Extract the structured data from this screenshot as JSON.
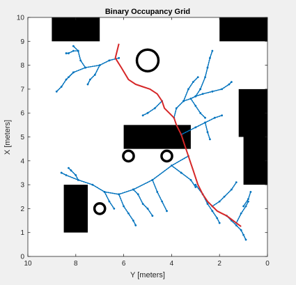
{
  "chart_data": {
    "type": "scatter",
    "title": "Binary Occupancy Grid",
    "xlabel": "Y [meters]",
    "ylabel": "X [meters]",
    "xlim": [
      10,
      0
    ],
    "ylim": [
      0,
      10
    ],
    "x_reversed": true,
    "x_ticks": [
      10,
      8,
      6,
      4,
      2,
      0
    ],
    "y_ticks": [
      0,
      1,
      2,
      3,
      4,
      5,
      6,
      7,
      8,
      9,
      10
    ],
    "grid": false,
    "background_color": "#ffffff",
    "obstacle_color": "#000000",
    "tree_color": "#0072bd",
    "path_color": "#d62728",
    "obstacles": {
      "rectangles": [
        {
          "y": [
            9.0,
            7.0
          ],
          "x": [
            9.0,
            10.0
          ]
        },
        {
          "y": [
            2.0,
            0.0
          ],
          "x": [
            9.0,
            10.0
          ]
        },
        {
          "y": [
            1.2,
            0.0
          ],
          "x": [
            5.0,
            7.0
          ]
        },
        {
          "y": [
            1.0,
            0.0
          ],
          "x": [
            3.0,
            5.2
          ]
        },
        {
          "y": [
            6.0,
            3.2
          ],
          "x": [
            4.5,
            5.5
          ]
        },
        {
          "y": [
            8.5,
            7.5
          ],
          "x": [
            1.0,
            3.0
          ]
        }
      ],
      "rings": [
        {
          "y": 5.0,
          "x": 8.2,
          "r": 0.45
        },
        {
          "y": 5.8,
          "x": 4.2,
          "r": 0.22
        },
        {
          "y": 4.2,
          "x": 4.2,
          "r": 0.22
        },
        {
          "y": 7.0,
          "x": 2.0,
          "r": 0.22
        }
      ]
    },
    "path": {
      "y": [
        6.2,
        6.35,
        6.1,
        5.8,
        5.5,
        5.2,
        4.9,
        4.6,
        4.4,
        4.3,
        4.1,
        3.9,
        3.8,
        3.7,
        3.6,
        3.5,
        3.4,
        3.3,
        3.2,
        3.1,
        3.0,
        2.9,
        2.7,
        2.5,
        2.3,
        2.1,
        1.9,
        1.7,
        1.5,
        1.3,
        1.1
      ],
      "x": [
        8.9,
        8.3,
        7.9,
        7.4,
        7.2,
        7.1,
        7.0,
        6.8,
        6.5,
        6.2,
        6.0,
        5.8,
        5.5,
        5.3,
        5.1,
        4.8,
        4.5,
        4.2,
        3.9,
        3.6,
        3.3,
        3.0,
        2.6,
        2.3,
        2.1,
        1.9,
        1.8,
        1.7,
        1.55,
        1.4,
        1.25
      ]
    },
    "tree_branches": [
      {
        "y": [
          6.2,
          6.6,
          7.0,
          7.6,
          8.1,
          8.3
        ],
        "x": [
          8.3,
          8.2,
          8.0,
          7.9,
          7.7,
          7.5
        ]
      },
      {
        "y": [
          7.6,
          7.8,
          7.9,
          8.1
        ],
        "x": [
          7.9,
          8.2,
          8.6,
          8.8
        ]
      },
      {
        "y": [
          8.1,
          8.4,
          8.6,
          8.8
        ],
        "x": [
          7.7,
          7.4,
          7.1,
          6.9
        ]
      },
      {
        "y": [
          7.0,
          7.2,
          7.4,
          7.5
        ],
        "x": [
          8.0,
          7.6,
          7.4,
          7.2
        ]
      },
      {
        "y": [
          7.9,
          8.1,
          8.3,
          8.4
        ],
        "x": [
          8.6,
          8.6,
          8.5,
          8.5
        ]
      },
      {
        "y": [
          3.9,
          3.8,
          3.5,
          3.2,
          3.0,
          2.8
        ],
        "x": [
          5.8,
          6.2,
          6.5,
          6.6,
          6.7,
          7.0
        ]
      },
      {
        "y": [
          3.0,
          2.7,
          2.3,
          1.9,
          1.6,
          1.5
        ],
        "x": [
          6.7,
          6.8,
          6.9,
          7.0,
          7.2,
          7.3
        ]
      },
      {
        "y": [
          2.8,
          2.6,
          2.5,
          2.4,
          2.3
        ],
        "x": [
          7.0,
          7.5,
          7.9,
          8.3,
          8.6
        ]
      },
      {
        "y": [
          3.5,
          3.3,
          3.1,
          2.9
        ],
        "x": [
          6.5,
          7.0,
          7.3,
          7.5
        ]
      },
      {
        "y": [
          3.2,
          3.0,
          2.8,
          2.6
        ],
        "x": [
          6.6,
          6.3,
          6.0,
          5.8
        ]
      },
      {
        "y": [
          4.4,
          4.7,
          5.0,
          5.2
        ],
        "x": [
          6.5,
          6.2,
          6.0,
          5.9
        ]
      },
      {
        "y": [
          3.6,
          3.0,
          2.6,
          2.2,
          1.9
        ],
        "x": [
          5.1,
          5.4,
          5.6,
          5.8,
          5.9
        ]
      },
      {
        "y": [
          2.6,
          2.5,
          2.4
        ],
        "x": [
          5.6,
          5.2,
          4.9
        ]
      },
      {
        "y": [
          3.3,
          4.0,
          4.8,
          5.6,
          6.2,
          6.8,
          7.3,
          7.9,
          8.4,
          8.6
        ],
        "x": [
          4.2,
          3.8,
          3.2,
          2.8,
          2.6,
          2.7,
          3.0,
          3.2,
          3.4,
          3.5
        ]
      },
      {
        "y": [
          6.2,
          6.0,
          5.8,
          5.6,
          5.5
        ],
        "x": [
          2.6,
          2.1,
          1.8,
          1.5,
          1.3
        ]
      },
      {
        "y": [
          4.8,
          4.6,
          4.4,
          4.2
        ],
        "x": [
          3.2,
          2.7,
          2.3,
          1.9
        ]
      },
      {
        "y": [
          5.6,
          5.4,
          5.2,
          5.0,
          4.8
        ],
        "x": [
          2.8,
          2.6,
          2.2,
          2.0,
          1.7
        ]
      },
      {
        "y": [
          6.8,
          6.6,
          6.4
        ],
        "x": [
          2.7,
          2.3,
          2.0
        ]
      },
      {
        "y": [
          7.9,
          8.0,
          8.2,
          8.3
        ],
        "x": [
          3.2,
          3.4,
          3.6,
          3.7
        ]
      },
      {
        "y": [
          4.0,
          3.6,
          3.2,
          3.0
        ],
        "x": [
          3.8,
          3.5,
          3.2,
          2.9
        ]
      },
      {
        "y": [
          3.0,
          2.7,
          2.5,
          2.3,
          2.1,
          2.0
        ],
        "x": [
          3.0,
          2.6,
          2.2,
          1.9,
          1.6,
          1.4
        ]
      },
      {
        "y": [
          2.3,
          2.0,
          1.8,
          1.5,
          1.3
        ],
        "x": [
          2.1,
          2.3,
          2.5,
          2.8,
          3.1
        ]
      },
      {
        "y": [
          1.7,
          1.5,
          1.3,
          1.1,
          1.0,
          0.9
        ],
        "x": [
          1.7,
          1.5,
          1.3,
          1.1,
          0.9,
          0.7
        ]
      },
      {
        "y": [
          1.3,
          1.1,
          0.9,
          0.8
        ],
        "x": [
          1.4,
          1.8,
          2.1,
          2.3
        ]
      },
      {
        "y": [
          1.0,
          0.8,
          0.7
        ],
        "x": [
          2.1,
          2.4,
          2.7
        ]
      }
    ]
  }
}
